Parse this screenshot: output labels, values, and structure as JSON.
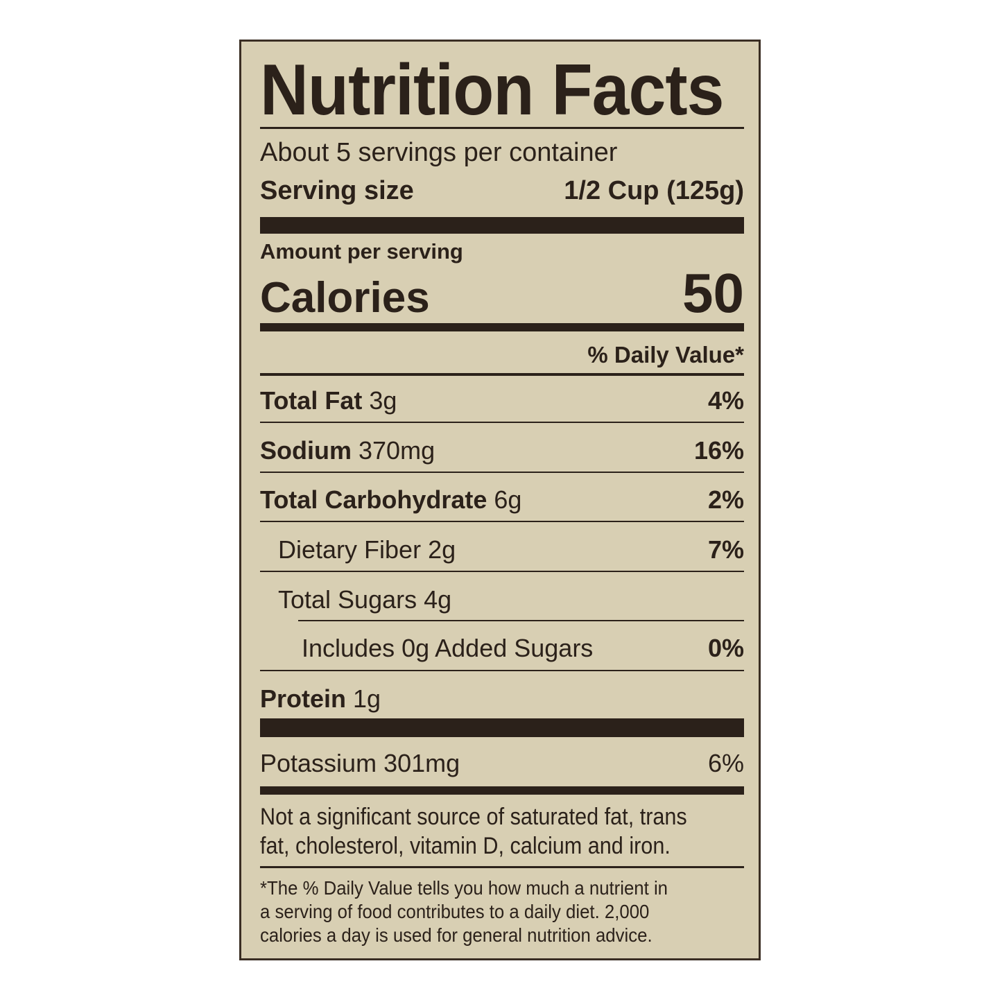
{
  "title": "Nutrition Facts",
  "servings_per_container": "About 5 servings per container",
  "serving_size": {
    "label": "Serving size",
    "value": "1/2 Cup (125g)"
  },
  "amount_per_serving": "Amount per serving",
  "calories": {
    "label": "Calories",
    "value": "50"
  },
  "daily_value_header": "% Daily Value*",
  "nutrients": [
    {
      "name": "Total Fat",
      "amount": "3g",
      "dv": "4%"
    },
    {
      "name": "Sodium",
      "amount": "370mg",
      "dv": "16%"
    },
    {
      "name": "Total Carbohydrate",
      "amount": "6g",
      "dv": "2%"
    },
    {
      "name": "Dietary Fiber",
      "amount": "2g",
      "dv": "7%"
    },
    {
      "name": "Total Sugars",
      "amount": "4g",
      "dv": ""
    },
    {
      "name": "Includes 0g Added Sugars",
      "amount": "",
      "dv": "0%"
    },
    {
      "name": "Protein",
      "amount": "1g",
      "dv": ""
    }
  ],
  "potassium": {
    "name": "Potassium 301mg",
    "dv": "6%"
  },
  "not_significant": [
    "Not a significant source of saturated fat, trans",
    "fat, cholesterol, vitamin D, calcium and iron."
  ],
  "footnote": [
    "*The % Daily Value tells you how much a nutrient in",
    "a serving of food contributes to a daily diet. 2,000",
    "calories a day is used for general nutrition advice."
  ],
  "colors": {
    "background": "#d8cfb3",
    "ink": "#2b211a"
  }
}
